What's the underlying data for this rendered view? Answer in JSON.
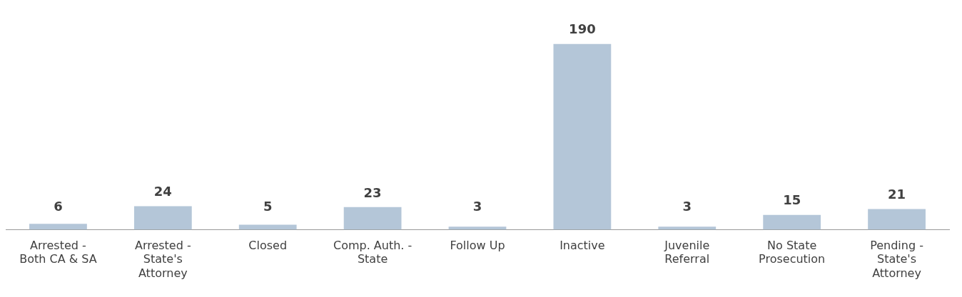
{
  "chart_data": {
    "type": "bar",
    "categories": [
      "Arrested - Both CA & SA",
      "Arrested - State's Attorney",
      "Closed",
      "Comp. Auth. - State",
      "Follow Up",
      "Inactive",
      "Juvenile Referral",
      "No State Prosecution",
      "Pending - State's Attorney"
    ],
    "values": [
      6,
      24,
      5,
      23,
      3,
      190,
      3,
      15,
      21
    ],
    "color": "#b4c6d8",
    "data_labels": true,
    "grid": false,
    "legend": false
  }
}
